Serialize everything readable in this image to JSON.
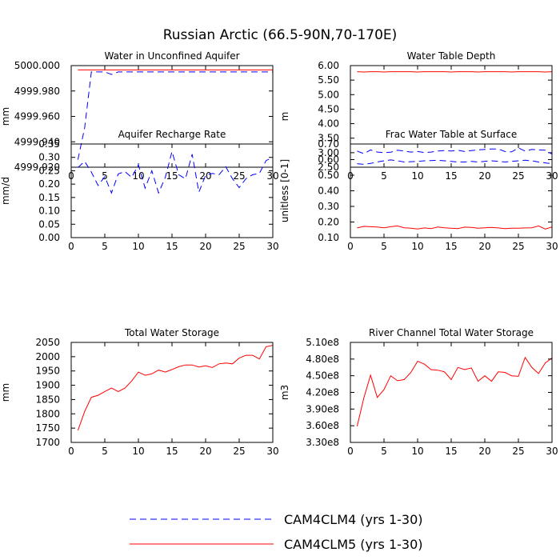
{
  "figure": {
    "title": "Russian Arctic (66.5-90N,70-170E)"
  },
  "legend": [
    {
      "label": "CAM4CLM4 (yrs 1-30)",
      "color": "#0000ff",
      "dash": "dashed"
    },
    {
      "label": "CAM4CLM5 (yrs 1-30)",
      "color": "#ff0000",
      "dash": "solid"
    }
  ],
  "chart_data": [
    {
      "type": "line",
      "title": "Water in Unconfined Aquifer",
      "ylabel": "mm",
      "xlim": [
        0,
        30
      ],
      "ylim": [
        4999.92,
        5000.0
      ],
      "xticks": [
        0,
        5,
        10,
        15,
        20,
        25,
        30
      ],
      "yticks": [
        4999.92,
        4999.94,
        4999.96,
        4999.98,
        5000.0
      ],
      "ytick_labels": [
        "4999.920",
        "4999.940",
        "4999.960",
        "4999.980",
        "5000.000"
      ],
      "grid": false,
      "series": [
        {
          "name": "CAM4CLM4 (yrs 1-30)",
          "color": "#0000ff",
          "dash": "dashed",
          "x": [
            1,
            2,
            3,
            4,
            5,
            6,
            7,
            8,
            9,
            10,
            11,
            12,
            13,
            14,
            15,
            16,
            17,
            18,
            19,
            20,
            21,
            22,
            23,
            24,
            25,
            26,
            27,
            28,
            29,
            30
          ],
          "y": [
            4999.926,
            4999.951,
            4999.995,
            4999.995,
            4999.995,
            4999.993,
            4999.995,
            4999.995,
            4999.995,
            4999.995,
            4999.995,
            4999.995,
            4999.995,
            4999.995,
            4999.995,
            4999.995,
            4999.995,
            4999.995,
            4999.995,
            4999.995,
            4999.995,
            4999.995,
            4999.995,
            4999.995,
            4999.995,
            4999.995,
            4999.995,
            4999.995,
            4999.995,
            4999.995
          ]
        },
        {
          "name": "CAM4CLM5 (yrs 1-30)",
          "color": "#ff0000",
          "dash": "solid",
          "x": [
            1,
            2,
            3,
            4,
            5,
            6,
            7,
            8,
            9,
            10,
            11,
            12,
            13,
            14,
            15,
            16,
            17,
            18,
            19,
            20,
            21,
            22,
            23,
            24,
            25,
            26,
            27,
            28,
            29,
            30
          ],
          "y": [
            4999.9966,
            4999.9966,
            4999.9966,
            4999.9966,
            4999.9966,
            4999.9966,
            4999.9966,
            4999.9966,
            4999.9966,
            4999.9966,
            4999.9966,
            4999.9966,
            4999.9966,
            4999.9966,
            4999.9966,
            4999.9966,
            4999.9966,
            4999.9966,
            4999.9966,
            4999.9966,
            4999.9966,
            4999.9966,
            4999.9966,
            4999.9966,
            4999.9966,
            4999.9966,
            4999.9966,
            4999.9966,
            4999.9966,
            4999.9966
          ]
        }
      ]
    },
    {
      "type": "line",
      "title": "Water Table Depth",
      "ylabel": "m",
      "xlim": [
        0,
        30
      ],
      "ylim": [
        2.5,
        6.0
      ],
      "xticks": [
        0,
        5,
        10,
        15,
        20,
        25,
        30
      ],
      "yticks": [
        2.5,
        3.0,
        3.5,
        4.0,
        4.5,
        5.0,
        5.5,
        6.0
      ],
      "ytick_labels": [
        "2.50",
        "3.00",
        "3.50",
        "4.00",
        "4.50",
        "5.00",
        "5.50",
        "6.00"
      ],
      "grid": false,
      "series": [
        {
          "name": "CAM4CLM4 (yrs 1-30)",
          "color": "#0000ff",
          "dash": "dashed",
          "x": [
            1,
            2,
            3,
            4,
            5,
            6,
            7,
            8,
            9,
            10,
            11,
            12,
            13,
            14,
            15,
            16,
            17,
            18,
            19,
            20,
            21,
            22,
            23,
            24,
            25,
            26,
            27,
            28,
            29,
            30
          ],
          "y": [
            2.62,
            2.6,
            2.63,
            2.68,
            2.72,
            2.75,
            2.72,
            2.68,
            2.69,
            2.7,
            2.72,
            2.73,
            2.74,
            2.72,
            2.7,
            2.68,
            2.68,
            2.7,
            2.68,
            2.7,
            2.72,
            2.7,
            2.68,
            2.7,
            2.72,
            2.74,
            2.72,
            2.68,
            2.65,
            2.62
          ]
        },
        {
          "name": "CAM4CLM5 (yrs 1-30)",
          "color": "#ff0000",
          "dash": "solid",
          "x": [
            1,
            2,
            3,
            4,
            5,
            6,
            7,
            8,
            9,
            10,
            11,
            12,
            13,
            14,
            15,
            16,
            17,
            18,
            19,
            20,
            21,
            22,
            23,
            24,
            25,
            26,
            27,
            28,
            29,
            30
          ],
          "y": [
            5.79,
            5.78,
            5.79,
            5.79,
            5.78,
            5.79,
            5.79,
            5.79,
            5.79,
            5.78,
            5.79,
            5.79,
            5.79,
            5.79,
            5.78,
            5.79,
            5.79,
            5.79,
            5.78,
            5.79,
            5.79,
            5.79,
            5.79,
            5.78,
            5.79,
            5.79,
            5.79,
            5.79,
            5.78,
            5.79
          ]
        }
      ]
    },
    {
      "type": "line",
      "title": "Aquifer Recharge Rate",
      "ylabel": "mm/d",
      "xlim": [
        0,
        30
      ],
      "ylim": [
        0.0,
        0.35
      ],
      "xticks": [
        0,
        5,
        10,
        15,
        20,
        25,
        30
      ],
      "yticks": [
        0.0,
        0.05,
        0.1,
        0.15,
        0.2,
        0.25,
        0.3,
        0.35
      ],
      "ytick_labels": [
        "0.00",
        "0.05",
        "0.10",
        "0.15",
        "0.20",
        "0.25",
        "0.30",
        "0.35"
      ],
      "grid": false,
      "series": [
        {
          "name": "CAM4CLM4 (yrs 1-30)",
          "color": "#0000ff",
          "dash": "dashed",
          "x": [
            1,
            2,
            3,
            4,
            5,
            6,
            7,
            8,
            9,
            10,
            11,
            12,
            13,
            14,
            15,
            16,
            17,
            18,
            19,
            20,
            21,
            22,
            23,
            24,
            25,
            26,
            27,
            28,
            29,
            30
          ],
          "y": [
            0.262,
            0.285,
            0.245,
            0.195,
            0.228,
            0.167,
            0.238,
            0.247,
            0.225,
            0.272,
            0.185,
            0.25,
            0.167,
            0.225,
            0.322,
            0.235,
            0.22,
            0.312,
            0.17,
            0.233,
            0.24,
            0.235,
            0.265,
            0.22,
            0.187,
            0.22,
            0.235,
            0.24,
            0.288,
            0.3
          ]
        },
        {
          "name": "CAM4CLM5 (yrs 1-30)",
          "color": "#ff0000",
          "dash": "solid",
          "x": [
            1,
            2,
            3,
            4,
            5,
            6,
            7,
            8,
            9,
            10,
            11,
            12,
            13,
            14,
            15,
            16,
            17,
            18,
            19,
            20,
            21,
            22,
            23,
            24,
            25,
            26,
            27,
            28,
            29,
            30
          ],
          "y": [
            0,
            0,
            0,
            0,
            0,
            0,
            0,
            0,
            0,
            0,
            0,
            0,
            0,
            0,
            0,
            0,
            0,
            0,
            0,
            0,
            0,
            0,
            0,
            0,
            0,
            0,
            0,
            0,
            0,
            0
          ]
        }
      ]
    },
    {
      "type": "line",
      "title": "Frac Water Table at Surface",
      "ylabel": "unitless [0-1]",
      "xlim": [
        0,
        30
      ],
      "ylim": [
        0.1,
        0.7
      ],
      "xticks": [
        0,
        5,
        10,
        15,
        20,
        25,
        30
      ],
      "yticks": [
        0.1,
        0.2,
        0.3,
        0.4,
        0.5,
        0.6,
        0.7
      ],
      "ytick_labels": [
        "0.10",
        "0.20",
        "0.30",
        "0.40",
        "0.50",
        "0.60",
        "0.70"
      ],
      "grid": false,
      "series": [
        {
          "name": "CAM4CLM4 (yrs 1-30)",
          "color": "#0000ff",
          "dash": "dashed",
          "x": [
            1,
            2,
            3,
            4,
            5,
            6,
            7,
            8,
            9,
            10,
            11,
            12,
            13,
            14,
            15,
            16,
            17,
            18,
            19,
            20,
            21,
            22,
            23,
            24,
            25,
            26,
            27,
            28,
            29,
            30
          ],
          "y": [
            0.655,
            0.638,
            0.662,
            0.648,
            0.645,
            0.647,
            0.66,
            0.655,
            0.648,
            0.652,
            0.645,
            0.648,
            0.655,
            0.658,
            0.655,
            0.66,
            0.652,
            0.658,
            0.662,
            0.665,
            0.668,
            0.668,
            0.652,
            0.65,
            0.675,
            0.655,
            0.665,
            0.662,
            0.66,
            0.635
          ]
        },
        {
          "name": "CAM4CLM5 (yrs 1-30)",
          "color": "#ff0000",
          "dash": "solid",
          "x": [
            1,
            2,
            3,
            4,
            5,
            6,
            7,
            8,
            9,
            10,
            11,
            12,
            13,
            14,
            15,
            16,
            17,
            18,
            19,
            20,
            21,
            22,
            23,
            24,
            25,
            26,
            27,
            28,
            29,
            30
          ],
          "y": [
            0.162,
            0.172,
            0.17,
            0.168,
            0.163,
            0.17,
            0.175,
            0.163,
            0.16,
            0.155,
            0.162,
            0.158,
            0.168,
            0.163,
            0.16,
            0.158,
            0.167,
            0.165,
            0.16,
            0.163,
            0.165,
            0.162,
            0.158,
            0.16,
            0.16,
            0.162,
            0.163,
            0.175,
            0.155,
            0.168
          ]
        }
      ]
    },
    {
      "type": "line",
      "title": "Total Water Storage",
      "ylabel": "mm",
      "xlim": [
        0,
        30
      ],
      "ylim": [
        1700,
        2050
      ],
      "xticks": [
        0,
        5,
        10,
        15,
        20,
        25,
        30
      ],
      "yticks": [
        1700,
        1750,
        1800,
        1850,
        1900,
        1950,
        2000,
        2050
      ],
      "ytick_labels": [
        "1700",
        "1750",
        "1800",
        "1850",
        "1900",
        "1950",
        "2000",
        "2050"
      ],
      "grid": false,
      "series": [
        {
          "name": "CAM4CLM5 (yrs 1-30)",
          "color": "#ff0000",
          "dash": "solid",
          "x": [
            1,
            2,
            3,
            4,
            5,
            6,
            7,
            8,
            9,
            10,
            11,
            12,
            13,
            14,
            15,
            16,
            17,
            18,
            19,
            20,
            21,
            22,
            23,
            24,
            25,
            26,
            27,
            28,
            29,
            30
          ],
          "y": [
            1742,
            1808,
            1858,
            1865,
            1878,
            1890,
            1878,
            1890,
            1915,
            1946,
            1935,
            1940,
            1953,
            1946,
            1955,
            1965,
            1971,
            1971,
            1964,
            1968,
            1962,
            1975,
            1978,
            1975,
            1995,
            2005,
            2005,
            1992,
            2035,
            2040
          ]
        }
      ]
    },
    {
      "type": "line",
      "title": "River Channel Total Water Storage",
      "ylabel": "m3",
      "xlim": [
        0,
        30
      ],
      "ylim": [
        330000000,
        510000000
      ],
      "xticks": [
        0,
        5,
        10,
        15,
        20,
        25,
        30
      ],
      "yticks": [
        330000000,
        360000000,
        390000000,
        420000000,
        450000000,
        480000000,
        510000000
      ],
      "ytick_labels": [
        "3.30e8",
        "3.60e8",
        "3.90e8",
        "4.20e8",
        "4.50e8",
        "4.80e8",
        "5.10e8"
      ],
      "grid": false,
      "series": [
        {
          "name": "CAM4CLM5 (yrs 1-30)",
          "color": "#ff0000",
          "dash": "solid",
          "x": [
            1,
            2,
            3,
            4,
            5,
            6,
            7,
            8,
            9,
            10,
            11,
            12,
            13,
            14,
            15,
            16,
            17,
            18,
            19,
            20,
            21,
            22,
            23,
            24,
            25,
            26,
            27,
            28,
            29,
            30
          ],
          "y": [
            359000000,
            410000000,
            451000000,
            411000000,
            425000000,
            450000000,
            441000000,
            443000000,
            456000000,
            476000000,
            471000000,
            461000000,
            460000000,
            457000000,
            443000000,
            465000000,
            461000000,
            464000000,
            440000000,
            450000000,
            440000000,
            457000000,
            456000000,
            450000000,
            449000000,
            483000000,
            465000000,
            454000000,
            473000000,
            482000000
          ]
        }
      ]
    }
  ]
}
